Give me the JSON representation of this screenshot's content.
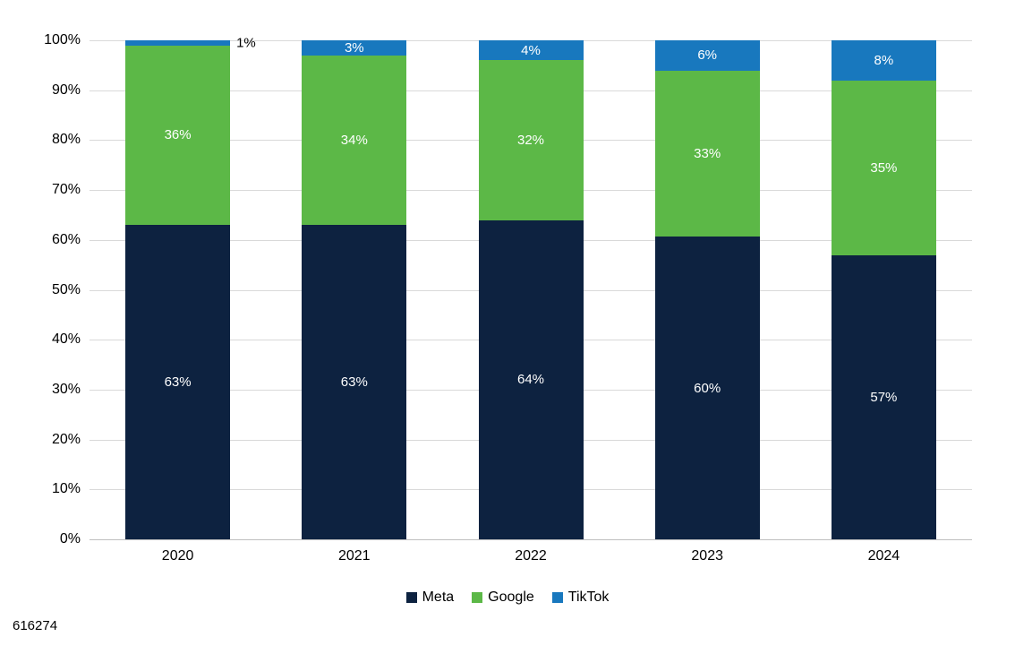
{
  "footer": {
    "note": "616274"
  },
  "chart_data": {
    "type": "bar",
    "stacked": true,
    "percent": true,
    "title": "",
    "categories": [
      "2020",
      "2021",
      "2022",
      "2023",
      "2024"
    ],
    "series": [
      {
        "name": "Meta",
        "color": "#0d2240",
        "values": [
          63,
          63,
          64,
          60,
          57
        ]
      },
      {
        "name": "Google",
        "color": "#5cb847",
        "values": [
          36,
          34,
          32,
          33,
          35
        ]
      },
      {
        "name": "TikTok",
        "color": "#1878be",
        "values": [
          1,
          3,
          4,
          6,
          8
        ]
      }
    ],
    "data_labels": {
      "suffix": "%",
      "inside_color": "#ffffff",
      "outside_color": "#000000"
    },
    "y_ticks": [
      "0%",
      "10%",
      "20%",
      "30%",
      "40%",
      "50%",
      "60%",
      "70%",
      "80%",
      "90%",
      "100%"
    ],
    "ylim": [
      0,
      100
    ],
    "grid": true,
    "gridline_color": "#d9d9d9",
    "axis_color": "#bfbfbf",
    "legend_position": "bottom",
    "legend_labels": [
      "Meta",
      "Google",
      "TikTok"
    ]
  }
}
